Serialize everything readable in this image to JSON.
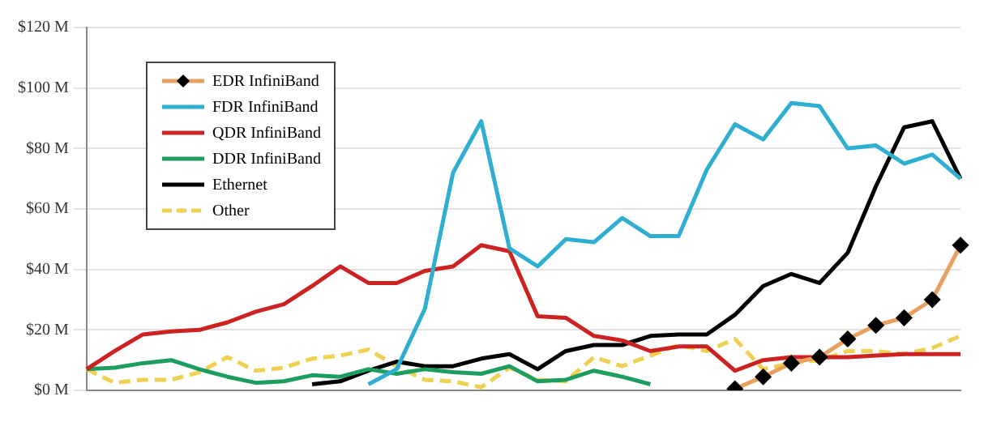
{
  "chart_data": {
    "type": "line",
    "categories": [
      null,
      null,
      null,
      null,
      null,
      null,
      null,
      null,
      null,
      null,
      null,
      null,
      null,
      null,
      null,
      null,
      null,
      null,
      null,
      null,
      null,
      null,
      null,
      null,
      null,
      null,
      null,
      null,
      null,
      null,
      null,
      null
    ],
    "series": [
      {
        "name": "EDR InfiniBand",
        "color": "#e8a060",
        "marker": "diamond",
        "values": [
          null,
          null,
          null,
          null,
          null,
          null,
          null,
          null,
          null,
          null,
          null,
          null,
          null,
          null,
          null,
          null,
          null,
          null,
          null,
          null,
          null,
          null,
          null,
          0.5,
          4.5,
          9,
          11,
          17,
          21.5,
          24,
          30,
          48
        ]
      },
      {
        "name": "FDR InfiniBand",
        "color": "#2eaed0",
        "values": [
          null,
          null,
          null,
          null,
          null,
          null,
          null,
          null,
          null,
          null,
          2,
          7,
          27,
          72,
          89,
          47,
          41,
          50,
          49,
          57,
          51,
          51,
          73,
          88,
          83,
          95,
          94,
          80,
          81,
          75,
          78,
          70
        ]
      },
      {
        "name": "QDR InfiniBand",
        "color": "#cc2222",
        "values": [
          7,
          13,
          18.5,
          19.5,
          20,
          22.5,
          26,
          28.5,
          34.5,
          41,
          35.5,
          35.5,
          39.5,
          41,
          48,
          46,
          24.5,
          24,
          18,
          16.5,
          13,
          14.5,
          14.5,
          6.5,
          10,
          11,
          11,
          11,
          11.5,
          12,
          12,
          12
        ]
      },
      {
        "name": "DDR InfiniBand",
        "color": "#1e9e5e",
        "values": [
          7,
          7.5,
          9,
          10,
          7,
          4.5,
          2.5,
          3,
          5,
          4.5,
          7,
          5.5,
          7,
          6,
          5.5,
          8,
          3,
          3.5,
          6.5,
          4.5,
          2,
          null,
          null,
          null,
          null,
          null,
          null,
          null,
          null,
          null,
          null,
          null
        ]
      },
      {
        "name": "Ethernet",
        "color": "#000000",
        "values": [
          null,
          null,
          null,
          null,
          null,
          null,
          null,
          null,
          2,
          3,
          6.5,
          9.5,
          8,
          8,
          10.5,
          12,
          7,
          13,
          15,
          15,
          18,
          18.5,
          18.5,
          25,
          34.5,
          38.5,
          35.5,
          45.5,
          67.5,
          87,
          89,
          70
        ]
      },
      {
        "name": "Other",
        "color": "#f0d050",
        "line_style": "dashed",
        "values": [
          7,
          2.5,
          3.5,
          3.5,
          6,
          11,
          6.5,
          7.5,
          10.5,
          11.5,
          13.5,
          8,
          3.5,
          3,
          1,
          7.5,
          3.5,
          3,
          11,
          8,
          11.5,
          15,
          13,
          17,
          7,
          9,
          10,
          13,
          13,
          12,
          14,
          18
        ]
      }
    ],
    "ylim": [
      0,
      120
    ],
    "yticks": [
      {
        "value": 0,
        "label": "$0 M"
      },
      {
        "value": 20,
        "label": "$20 M"
      },
      {
        "value": 40,
        "label": "$40 M"
      },
      {
        "value": 60,
        "label": "$60 M"
      },
      {
        "value": 80,
        "label": "$80 M"
      },
      {
        "value": 100,
        "label": "$100 M"
      },
      {
        "value": 120,
        "label": "$120 M"
      }
    ],
    "grid": "y",
    "legend": "top left"
  }
}
